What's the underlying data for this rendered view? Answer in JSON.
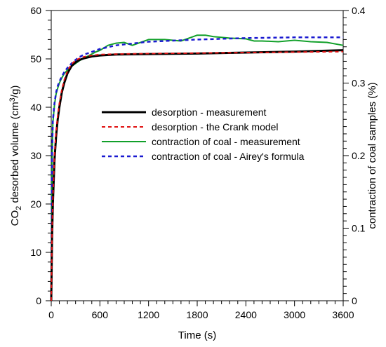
{
  "chart_data": {
    "type": "line",
    "xlabel": "Time (s)",
    "ylabel_left": {
      "pre": "CO",
      "sub": "2",
      "mid": " desorbed volume (cm",
      "sup": "3",
      "post": "/g)"
    },
    "ylabel_right": "contraction  of coal samples (%)",
    "xlim": [
      0,
      3600
    ],
    "ylim_left": [
      0,
      60
    ],
    "ylim_right": [
      0,
      0.4
    ],
    "x_ticks": [
      0,
      600,
      1200,
      1800,
      2400,
      3000,
      3600
    ],
    "y_left_ticks": [
      0,
      10,
      20,
      30,
      40,
      50,
      60
    ],
    "y_right_ticks": [
      0,
      0.1,
      0.2,
      0.3,
      0.4
    ],
    "y_right_tick_labels": [
      "0",
      "0.1",
      "0.2",
      "0.3",
      "0.4"
    ],
    "grid": false,
    "legend_position": "center",
    "series": [
      {
        "name": "desorption - measurement",
        "axis": "left",
        "color": "#000000",
        "style": "solid",
        "x": [
          0,
          10,
          20,
          40,
          60,
          80,
          100,
          130,
          160,
          200,
          250,
          300,
          350,
          400,
          450,
          500,
          600,
          800,
          1200,
          1800,
          2400,
          3000,
          3600
        ],
        "y": [
          0,
          13,
          20,
          29,
          34,
          37.5,
          40,
          43,
          45,
          47,
          48.5,
          49.3,
          49.8,
          50.1,
          50.3,
          50.5,
          50.7,
          50.9,
          51.0,
          51.1,
          51.3,
          51.5,
          51.8
        ]
      },
      {
        "name": "desorption - the Crank model",
        "axis": "left",
        "color": "#e01010",
        "style": "dashed",
        "x": [
          0,
          10,
          20,
          40,
          60,
          80,
          100,
          130,
          160,
          200,
          250,
          300,
          350,
          400,
          450,
          500,
          600,
          800,
          1200,
          1800,
          2400,
          3000,
          3600
        ],
        "y": [
          0,
          14,
          21,
          30,
          35,
          38.3,
          40.8,
          43.6,
          45.6,
          47.5,
          48.9,
          49.7,
          50.1,
          50.4,
          50.6,
          50.7,
          50.9,
          51.0,
          51.1,
          51.2,
          51.3,
          51.4,
          51.5
        ]
      },
      {
        "name": "contraction of coal - measurement",
        "axis": "right",
        "color": "#12a02a",
        "style": "solid",
        "x": [
          0,
          10,
          20,
          40,
          60,
          80,
          100,
          130,
          160,
          200,
          250,
          300,
          350,
          400,
          450,
          500,
          550,
          600,
          700,
          800,
          900,
          1000,
          1100,
          1200,
          1400,
          1600,
          1800,
          1900,
          2000,
          2200,
          2400,
          2500,
          2600,
          2800,
          3000,
          3200,
          3400,
          3600
        ],
        "y": [
          0,
          0.19,
          0.245,
          0.27,
          0.285,
          0.293,
          0.3,
          0.307,
          0.313,
          0.318,
          0.323,
          0.327,
          0.331,
          0.334,
          0.337,
          0.34,
          0.343,
          0.345,
          0.352,
          0.355,
          0.356,
          0.352,
          0.356,
          0.36,
          0.36,
          0.358,
          0.366,
          0.366,
          0.364,
          0.362,
          0.361,
          0.358,
          0.358,
          0.357,
          0.359,
          0.357,
          0.356,
          0.352
        ]
      },
      {
        "name": "contraction of coal - Airey's formula",
        "axis": "right",
        "color": "#1a1ad0",
        "style": "dashed",
        "x": [
          0,
          10,
          20,
          40,
          60,
          80,
          100,
          130,
          160,
          200,
          250,
          300,
          350,
          400,
          450,
          500,
          600,
          800,
          1200,
          1800,
          2400,
          3000,
          3600
        ],
        "y": [
          0,
          0.2,
          0.248,
          0.272,
          0.287,
          0.296,
          0.302,
          0.309,
          0.315,
          0.321,
          0.327,
          0.332,
          0.336,
          0.339,
          0.341,
          0.343,
          0.347,
          0.352,
          0.357,
          0.36,
          0.362,
          0.363,
          0.363
        ]
      }
    ]
  }
}
